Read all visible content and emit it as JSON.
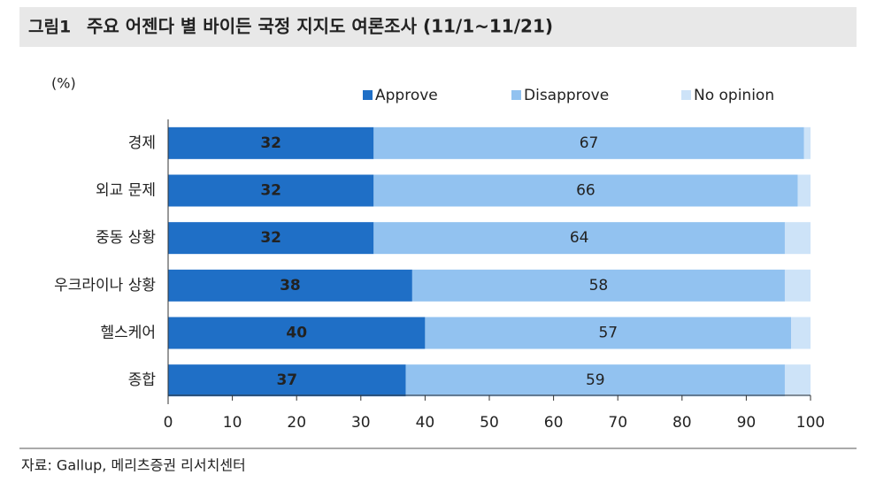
{
  "chart_data": {
    "type": "stacked-barh",
    "figure_label": "그림1",
    "title": "주요 어젠다 별 바이든 국정 지지도 여론조사 (11/1~11/21)",
    "unit_label": "(%)",
    "source": "자료: Gallup, 메리츠증권 리서치센터",
    "categories": [
      "경제",
      "외교 문제",
      "중동 상황",
      "우크라이나 상황",
      "헬스케어",
      "종합"
    ],
    "series": [
      {
        "name": "Approve",
        "color": "#1f6fc6",
        "show_labels": true,
        "label_color": "#ffffff",
        "values": [
          32,
          32,
          32,
          38,
          40,
          37
        ]
      },
      {
        "name": "Disapprove",
        "color": "#92c2f0",
        "show_labels": true,
        "label_color": "#444444",
        "values": [
          67,
          66,
          64,
          58,
          57,
          59
        ]
      },
      {
        "name": "No opinion",
        "color": "#cde3f8",
        "show_labels": false,
        "label_color": "#444444",
        "values": [
          1,
          2,
          4,
          4,
          3,
          4
        ]
      }
    ],
    "xlim": [
      0,
      100
    ],
    "xticks": [
      0,
      10,
      20,
      30,
      40,
      50,
      60,
      70,
      80,
      90,
      100
    ]
  }
}
